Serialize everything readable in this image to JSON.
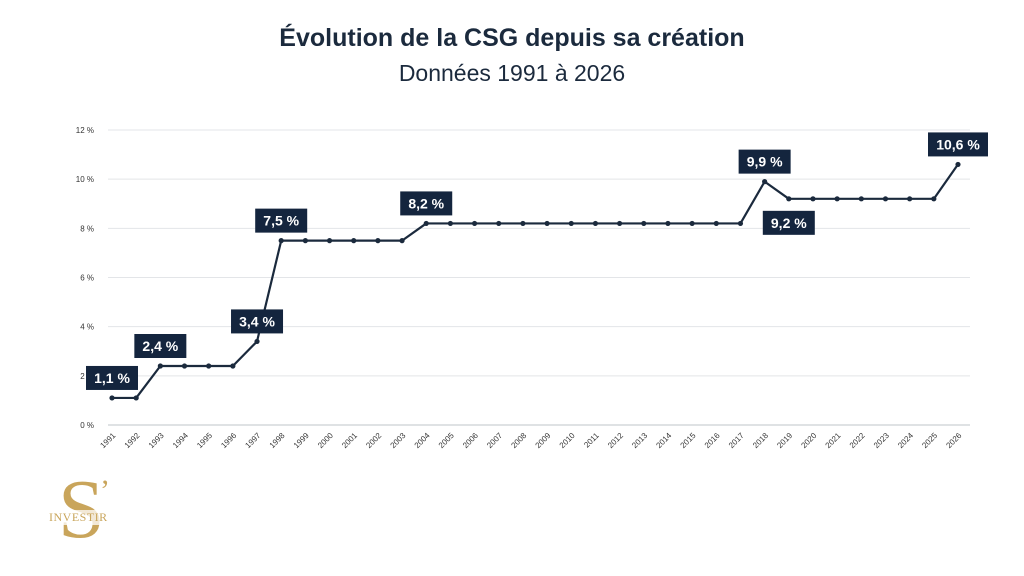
{
  "header": {
    "title": "Évolution de la CSG depuis sa création",
    "subtitle": "Données 1991 à 2026"
  },
  "logo": {
    "text": "INVESTIR",
    "letter": "S",
    "apostrophe": "’",
    "color": "#c9a55b"
  },
  "chart_data": {
    "type": "line",
    "title": "Évolution de la CSG depuis sa création",
    "subtitle": "Données 1991 à 2026",
    "xlabel": "",
    "ylabel": "",
    "x": [
      "1991",
      "1992",
      "1993",
      "1994",
      "1995",
      "1996",
      "1997",
      "1998",
      "1999",
      "2000",
      "2001",
      "2002",
      "2003",
      "2004",
      "2005",
      "2006",
      "2007",
      "2008",
      "2009",
      "2010",
      "2011",
      "2012",
      "2013",
      "2014",
      "2015",
      "2016",
      "2017",
      "2018",
      "2019",
      "2020",
      "2021",
      "2022",
      "2023",
      "2024",
      "2025",
      "2026"
    ],
    "values": [
      1.1,
      1.1,
      2.4,
      2.4,
      2.4,
      2.4,
      3.4,
      7.5,
      7.5,
      7.5,
      7.5,
      7.5,
      7.5,
      8.2,
      8.2,
      8.2,
      8.2,
      8.2,
      8.2,
      8.2,
      8.2,
      8.2,
      8.2,
      8.2,
      8.2,
      8.2,
      8.2,
      9.9,
      9.2,
      9.2,
      9.2,
      9.2,
      9.2,
      9.2,
      9.2,
      10.6
    ],
    "ylim": [
      0,
      12
    ],
    "yticks": [
      0,
      2,
      4,
      6,
      8,
      10,
      12
    ],
    "ytick_labels": [
      "0 %",
      "2 %",
      "4 %",
      "6 %",
      "8 %",
      "10 %",
      "12 %"
    ],
    "grid": true,
    "line_color": "#1b2a3d",
    "label_bg_color": "#14253e",
    "annotations": [
      {
        "year": "1991",
        "text": "1,1 %",
        "placement": "above"
      },
      {
        "year": "1993",
        "text": "2,4 %",
        "placement": "above"
      },
      {
        "year": "1997",
        "text": "3,4 %",
        "placement": "above"
      },
      {
        "year": "1998",
        "text": "7,5 %",
        "placement": "above"
      },
      {
        "year": "2004",
        "text": "8,2 %",
        "placement": "above"
      },
      {
        "year": "2018",
        "text": "9,9 %",
        "placement": "above"
      },
      {
        "year": "2019",
        "text": "9,2 %",
        "placement": "below"
      },
      {
        "year": "2026",
        "text": "10,6 %",
        "placement": "above"
      }
    ]
  }
}
